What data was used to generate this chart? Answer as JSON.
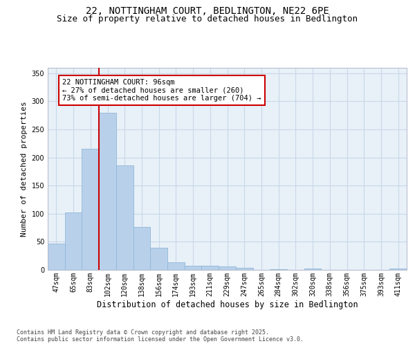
{
  "title_line1": "22, NOTTINGHAM COURT, BEDLINGTON, NE22 6PE",
  "title_line2": "Size of property relative to detached houses in Bedlington",
  "xlabel": "Distribution of detached houses by size in Bedlington",
  "ylabel": "Number of detached properties",
  "categories": [
    "47sqm",
    "65sqm",
    "83sqm",
    "102sqm",
    "120sqm",
    "138sqm",
    "156sqm",
    "174sqm",
    "193sqm",
    "211sqm",
    "229sqm",
    "247sqm",
    "265sqm",
    "284sqm",
    "302sqm",
    "320sqm",
    "338sqm",
    "356sqm",
    "375sqm",
    "393sqm",
    "411sqm"
  ],
  "values": [
    47,
    102,
    215,
    280,
    186,
    76,
    40,
    13,
    7,
    8,
    6,
    4,
    0,
    1,
    0,
    3,
    0,
    0,
    0,
    0,
    2
  ],
  "bar_color": "#b8d0ea",
  "bar_edgecolor": "#90b8d8",
  "grid_color": "#c8d8e8",
  "background_color": "#e8f0f8",
  "vline_x": 2.5,
  "vline_color": "#cc0000",
  "annotation_box_text": "22 NOTTINGHAM COURT: 96sqm\n← 27% of detached houses are smaller (260)\n73% of semi-detached houses are larger (704) →",
  "box_edgecolor": "#cc0000",
  "footnote": "Contains HM Land Registry data © Crown copyright and database right 2025.\nContains public sector information licensed under the Open Government Licence v3.0.",
  "ylim": [
    0,
    360
  ],
  "yticks": [
    0,
    50,
    100,
    150,
    200,
    250,
    300,
    350
  ],
  "title_fontsize": 10,
  "subtitle_fontsize": 9,
  "xlabel_fontsize": 8.5,
  "ylabel_fontsize": 8,
  "tick_fontsize": 7,
  "annotation_fontsize": 7.5,
  "footnote_fontsize": 6
}
